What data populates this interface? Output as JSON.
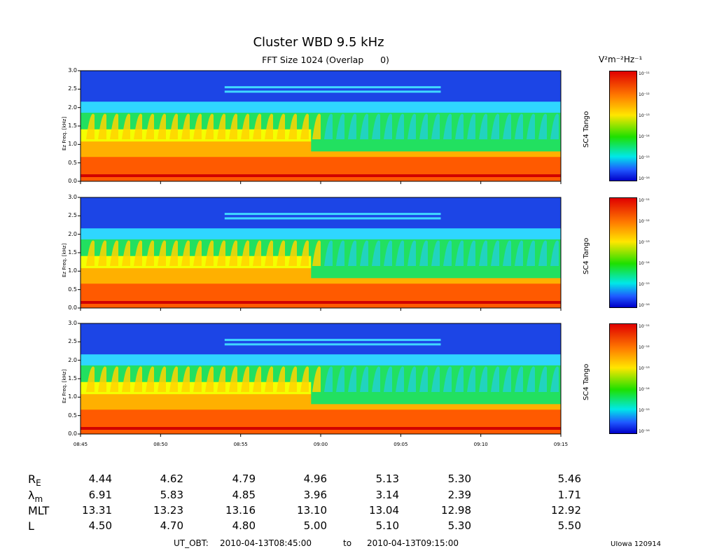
{
  "chart_data": {
    "type": "heatmap",
    "title": "Cluster WBD 9.5 kHz",
    "subtitle": "FFT Size 1024 (Overlap      0)",
    "colorbar_unit": "V²m⁻²Hz⁻¹",
    "colorbar_label": "SC4 Tango",
    "colorbar_ticks": [
      "10⁻¹¹",
      "10⁻¹²",
      "10⁻¹³",
      "10⁻¹⁴",
      "10⁻¹⁵",
      "10⁻¹⁶"
    ],
    "colorbar_colors": [
      "#e00000",
      "#ff7a00",
      "#ffe600",
      "#1ee000",
      "#00e8e8",
      "#0000c8"
    ],
    "ylabel": "Ez Freq. [kHz]",
    "ylim": [
      0,
      3.0
    ],
    "yticks": [
      "3.0",
      "2.5",
      "2.0",
      "1.5",
      "1.0",
      "0.5",
      "0.0"
    ],
    "xticks": [
      "08:45",
      "08:50",
      "08:55",
      "09:00",
      "09:05",
      "09:10",
      "09:15"
    ],
    "xlim": [
      "2010-04-13T08:45:00",
      "2010-04-13T09:15:00"
    ],
    "panels": 3
  },
  "ephemeris": {
    "rows": [
      {
        "label": "R",
        "sub": "E",
        "values": [
          "4.44",
          "4.62",
          "4.79",
          "4.96",
          "5.13",
          "5.30",
          "5.46"
        ]
      },
      {
        "label": "λ",
        "sub": "m",
        "values": [
          "6.91",
          "5.83",
          "4.85",
          "3.96",
          "3.14",
          "2.39",
          "1.71"
        ]
      },
      {
        "label": "MLT",
        "sub": "",
        "values": [
          "13.31",
          "13.23",
          "13.16",
          "13.10",
          "13.04",
          "12.98",
          "12.92"
        ]
      },
      {
        "label": "L",
        "sub": "",
        "values": [
          "4.50",
          "4.70",
          "4.80",
          "5.00",
          "5.10",
          "5.30",
          "5.50"
        ]
      }
    ]
  },
  "footer": {
    "prefix": "UT_OBT:",
    "start": "2010-04-13T08:45:00",
    "to": "to",
    "end": "2010-04-13T09:15:00"
  },
  "credit": "UIowa 120914"
}
